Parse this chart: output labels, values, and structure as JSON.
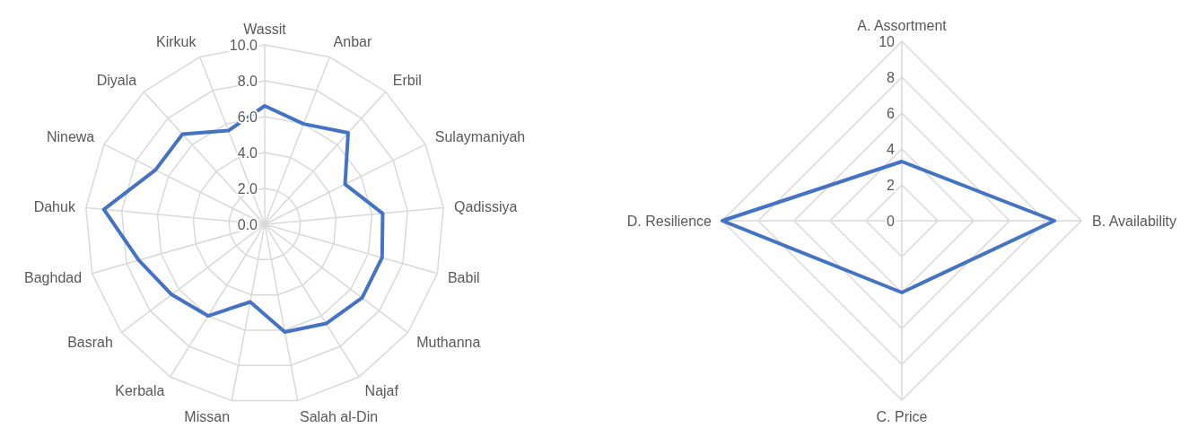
{
  "chart_data": [
    {
      "type": "radar",
      "categories": [
        "Wassit",
        "Anbar",
        "Erbil",
        "Sulaymaniyah",
        "Qadissiya",
        "Babil",
        "Muthanna",
        "Najaf",
        "Salah al-Din",
        "Missan",
        "Kerbala",
        "Basrah",
        "Baghdad",
        "Dahuk",
        "Ninewa",
        "Diyala",
        "Kirkuk"
      ],
      "series": [
        {
          "color": "#4472c4",
          "values": [
            6.6,
            6.0,
            6.9,
            5.0,
            6.6,
            6.8,
            6.8,
            6.5,
            6.1,
            4.4,
            6.0,
            6.5,
            7.3,
            9.0,
            6.8,
            6.8,
            5.6
          ]
        }
      ],
      "ylim": [
        0,
        10
      ],
      "yticks": [
        {
          "value": 0,
          "label": "0.0"
        },
        {
          "value": 2,
          "label": "2.0"
        },
        {
          "value": 4,
          "label": "4.0"
        },
        {
          "value": 6,
          "label": "6.0"
        },
        {
          "value": 8,
          "label": "8.0"
        },
        {
          "value": 10,
          "label": "10.0"
        }
      ],
      "grid": true
    },
    {
      "type": "radar",
      "categories": [
        "A. Assortment",
        "B. Availability",
        "C. Price",
        "D. Resilience"
      ],
      "series": [
        {
          "color": "#4472c4",
          "values": [
            3.3,
            8.5,
            4.0,
            10
          ]
        }
      ],
      "ylim": [
        0,
        10
      ],
      "yticks": [
        0,
        2,
        4,
        6,
        8,
        10
      ],
      "grid": true
    }
  ]
}
